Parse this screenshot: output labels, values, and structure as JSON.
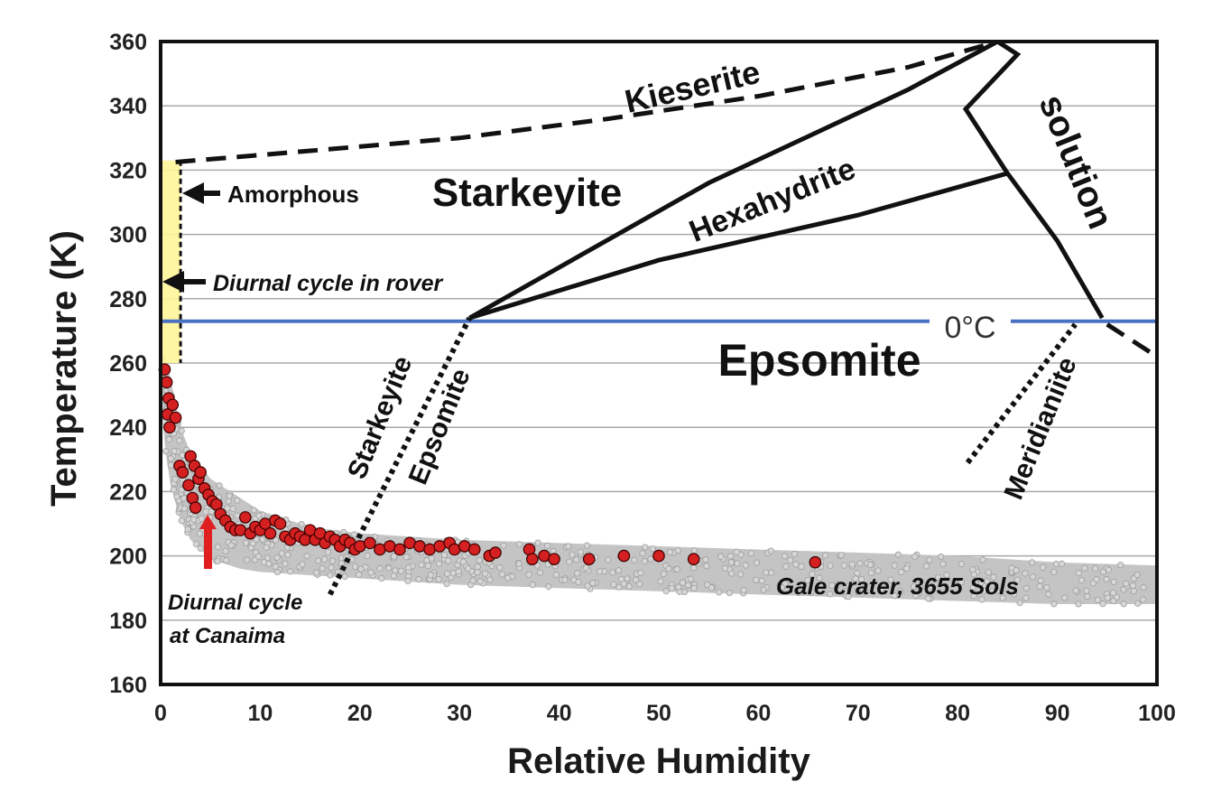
{
  "chart_data": {
    "type": "scatter",
    "xlabel": "Relative Humidity",
    "ylabel": "Temperature (K)",
    "xlim": [
      0,
      100
    ],
    "ylim": [
      160,
      360
    ],
    "x_ticks": [
      0,
      10,
      20,
      30,
      40,
      50,
      60,
      70,
      80,
      90,
      100
    ],
    "y_ticks": [
      160,
      180,
      200,
      220,
      240,
      260,
      280,
      300,
      320,
      340,
      360
    ],
    "grid": "horizontal",
    "reference_line": {
      "y": 273,
      "label": "0°C",
      "color": "#4a72c0"
    },
    "colors": {
      "gale": "#c4c4c4",
      "canaima": "#d42020",
      "amorphous": "#fff59a",
      "line": "#111111"
    },
    "series": [
      {
        "name": "Gale crater, 3655 Sols",
        "style": "band",
        "x": [
          0,
          0.5,
          1,
          2,
          3,
          5,
          8,
          10,
          15,
          20,
          25,
          30,
          40,
          50,
          60,
          70,
          80,
          90,
          100
        ],
        "y_low": [
          250,
          232,
          222,
          211,
          205,
          199,
          196,
          195,
          194,
          193,
          192,
          191,
          190,
          189,
          188,
          187,
          186,
          185,
          185
        ],
        "y_high": [
          262,
          262,
          255,
          240,
          232,
          224,
          218,
          214,
          209,
          207,
          206,
          205,
          204,
          203,
          202,
          201,
          200,
          198,
          197
        ]
      },
      {
        "name": "Diurnal cycle at Canaima",
        "style": "points",
        "points": [
          [
            0.4,
            258
          ],
          [
            0.6,
            254
          ],
          [
            0.8,
            249
          ],
          [
            0.7,
            244
          ],
          [
            0.9,
            240
          ],
          [
            1.2,
            247
          ],
          [
            1.5,
            243
          ],
          [
            1.9,
            228
          ],
          [
            2.2,
            226
          ],
          [
            2.8,
            222
          ],
          [
            3.2,
            218
          ],
          [
            3.5,
            215
          ],
          [
            3.0,
            231
          ],
          [
            3.4,
            228
          ],
          [
            3.8,
            224
          ],
          [
            4.0,
            226
          ],
          [
            4.4,
            221
          ],
          [
            4.8,
            219
          ],
          [
            5.2,
            217
          ],
          [
            5.6,
            216
          ],
          [
            6.0,
            213
          ],
          [
            6.5,
            211
          ],
          [
            7.0,
            209
          ],
          [
            7.5,
            208
          ],
          [
            8.0,
            208
          ],
          [
            8.5,
            212
          ],
          [
            9.0,
            207
          ],
          [
            9.5,
            209
          ],
          [
            10.0,
            208
          ],
          [
            10.5,
            210
          ],
          [
            11.0,
            207
          ],
          [
            11.5,
            211
          ],
          [
            12.0,
            210
          ],
          [
            12.5,
            206
          ],
          [
            13.0,
            205
          ],
          [
            13.5,
            207
          ],
          [
            14.0,
            206
          ],
          [
            14.5,
            205
          ],
          [
            15.0,
            208
          ],
          [
            15.5,
            205
          ],
          [
            16.0,
            207
          ],
          [
            16.5,
            204
          ],
          [
            17.0,
            206
          ],
          [
            17.5,
            205
          ],
          [
            18.0,
            203
          ],
          [
            18.5,
            205
          ],
          [
            19.0,
            204
          ],
          [
            19.5,
            202
          ],
          [
            20.0,
            203
          ],
          [
            21.0,
            204
          ],
          [
            22.0,
            202
          ],
          [
            23.0,
            203
          ],
          [
            24.0,
            202
          ],
          [
            25.0,
            204
          ],
          [
            26.0,
            203
          ],
          [
            27.0,
            202
          ],
          [
            28.0,
            203
          ],
          [
            29.0,
            204
          ],
          [
            29.5,
            202
          ],
          [
            30.5,
            203
          ],
          [
            31.5,
            202
          ],
          [
            33.0,
            200
          ],
          [
            33.6,
            201
          ],
          [
            37.0,
            202
          ],
          [
            37.3,
            199
          ],
          [
            38.5,
            200
          ],
          [
            39.5,
            199
          ],
          [
            43.0,
            199
          ],
          [
            46.5,
            200
          ],
          [
            50.0,
            200
          ],
          [
            53.5,
            199
          ],
          [
            65.7,
            198
          ]
        ]
      }
    ],
    "phase_boundaries": [
      {
        "name": "Kieserite",
        "style": "dashed",
        "x": [
          1.5,
          15,
          30,
          45,
          60,
          75,
          84
        ],
        "y": [
          322.5,
          326,
          330,
          336,
          343,
          352,
          360
        ]
      },
      {
        "name": "Starkeyite/Hexahydrite upper",
        "style": "solid",
        "x": [
          31,
          55,
          75,
          84
        ],
        "y": [
          274,
          316,
          345,
          360
        ]
      },
      {
        "name": "Hexahydrite lower",
        "style": "solid",
        "x": [
          31,
          50,
          70,
          85
        ],
        "y": [
          274,
          292,
          306,
          319
        ]
      },
      {
        "name": "Hexahydrite/solution",
        "style": "solid",
        "x": [
          84,
          86,
          80.8,
          85,
          90,
          94.5
        ],
        "y": [
          360,
          356,
          339,
          319,
          298,
          274
        ]
      },
      {
        "name": "Starkeyite/Epsomite",
        "style": "dotted",
        "x": [
          17,
          31
        ],
        "y": [
          188,
          274
        ]
      },
      {
        "name": "Meridianiite",
        "style": "dotted",
        "x": [
          81,
          91.8
        ],
        "y": [
          229,
          272
        ]
      },
      {
        "name": "solution lower",
        "style": "dashed",
        "x": [
          95,
          100
        ],
        "y": [
          272,
          262
        ]
      }
    ],
    "amorphous_region": {
      "x": [
        0,
        2
      ],
      "y": [
        260,
        323
      ]
    },
    "annotations": {
      "kieserite": "Kieserite",
      "starkeyite": "Starkeyite",
      "hexahydrite": "Hexahydrite",
      "solution": "solution",
      "epsomite": "Epsomite",
      "starkeyite_boundary": "Starkeyite",
      "epsomite_boundary": "Epsomite",
      "meridianiite": "Meridianiite",
      "amorphous": "Amorphous",
      "diurnal_rover": "Diurnal cycle in rover",
      "canaima_line1": "Diurnal cycle",
      "canaima_line2": "at Canaima",
      "gale": "Gale crater, 3655 Sols"
    }
  }
}
